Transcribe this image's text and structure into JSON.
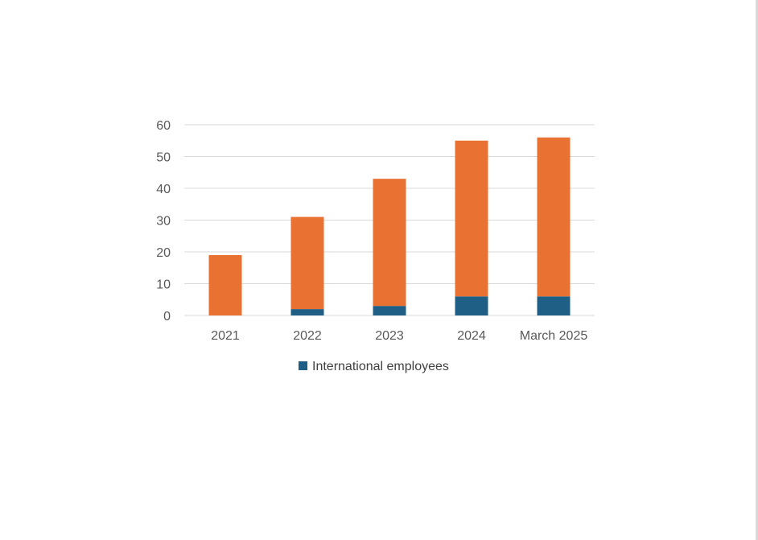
{
  "chart_data": {
    "type": "bar",
    "stacked": true,
    "categories": [
      "2021",
      "2022",
      "2023",
      "2024",
      "March 2025"
    ],
    "series": [
      {
        "name": "International employees",
        "values": [
          0,
          2,
          3,
          6,
          6
        ],
        "color": "#1f5f86"
      },
      {
        "values": [
          19,
          29,
          40,
          49,
          50
        ],
        "color": "#e97132"
      }
    ],
    "totals": [
      19,
      31,
      43,
      55,
      56
    ],
    "ylim": [
      0,
      60
    ],
    "yticks": [
      0,
      10,
      20,
      30,
      40,
      50,
      60
    ],
    "grid": true,
    "legend": "bottom",
    "colors": {
      "gridline": "#d9d9d9",
      "axis_text": "#595959",
      "legend_text": "#404040"
    }
  }
}
